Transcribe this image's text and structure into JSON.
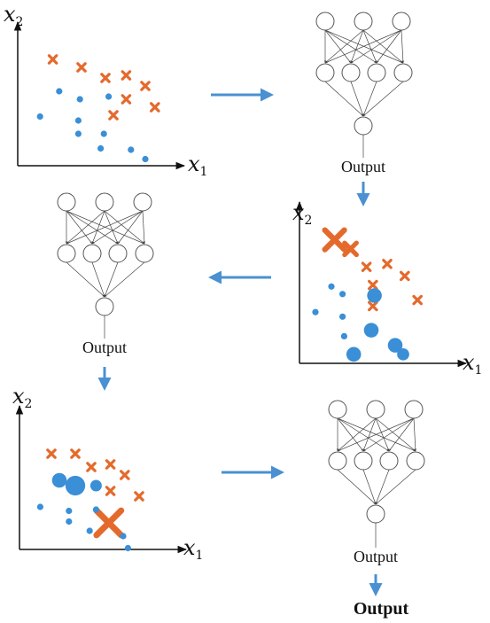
{
  "colors": {
    "orange": "#E46A2C",
    "blue": "#3A8FD6",
    "arrow": "#4A90D2",
    "node_stroke": "#555555",
    "edge": "#444444"
  },
  "axis": {
    "x_var": "x",
    "x_sub": "1",
    "y_var": "x",
    "y_sub": "2"
  },
  "network": {
    "output_label": "Output"
  },
  "final_output": "Output",
  "panels": [
    {
      "name": "scatter-initial",
      "points": [
        {
          "shape": "cross",
          "x": 0.22,
          "y": 0.8,
          "size": 1
        },
        {
          "shape": "cross",
          "x": 0.4,
          "y": 0.74,
          "size": 1
        },
        {
          "shape": "cross",
          "x": 0.55,
          "y": 0.66,
          "size": 1
        },
        {
          "shape": "cross",
          "x": 0.68,
          "y": 0.68,
          "size": 1
        },
        {
          "shape": "cross",
          "x": 0.8,
          "y": 0.6,
          "size": 1
        },
        {
          "shape": "cross",
          "x": 0.68,
          "y": 0.5,
          "size": 1
        },
        {
          "shape": "cross",
          "x": 0.86,
          "y": 0.44,
          "size": 1
        },
        {
          "shape": "cross",
          "x": 0.6,
          "y": 0.38,
          "size": 1
        },
        {
          "shape": "dot",
          "x": 0.26,
          "y": 0.56,
          "size": 1
        },
        {
          "shape": "dot",
          "x": 0.39,
          "y": 0.5,
          "size": 1
        },
        {
          "shape": "dot",
          "x": 0.57,
          "y": 0.52,
          "size": 1
        },
        {
          "shape": "dot",
          "x": 0.14,
          "y": 0.37,
          "size": 1
        },
        {
          "shape": "dot",
          "x": 0.38,
          "y": 0.34,
          "size": 1
        },
        {
          "shape": "dot",
          "x": 0.38,
          "y": 0.24,
          "size": 1
        },
        {
          "shape": "dot",
          "x": 0.54,
          "y": 0.24,
          "size": 1
        },
        {
          "shape": "dot",
          "x": 0.52,
          "y": 0.13,
          "size": 1
        },
        {
          "shape": "dot",
          "x": 0.71,
          "y": 0.12,
          "size": 1
        },
        {
          "shape": "dot",
          "x": 0.8,
          "y": 0.05,
          "size": 1
        }
      ]
    },
    {
      "name": "scatter-reweighted",
      "points": [
        {
          "shape": "cross",
          "x": 0.22,
          "y": 0.82,
          "size": 2.6
        },
        {
          "shape": "cross",
          "x": 0.32,
          "y": 0.76,
          "size": 1.6
        },
        {
          "shape": "cross",
          "x": 0.42,
          "y": 0.64,
          "size": 1
        },
        {
          "shape": "cross",
          "x": 0.55,
          "y": 0.66,
          "size": 1
        },
        {
          "shape": "cross",
          "x": 0.66,
          "y": 0.58,
          "size": 1
        },
        {
          "shape": "cross",
          "x": 0.46,
          "y": 0.52,
          "size": 1
        },
        {
          "shape": "cross",
          "x": 0.74,
          "y": 0.42,
          "size": 1
        },
        {
          "shape": "cross",
          "x": 0.46,
          "y": 0.38,
          "size": 1
        },
        {
          "shape": "dot",
          "x": 0.2,
          "y": 0.51,
          "size": 1
        },
        {
          "shape": "dot",
          "x": 0.27,
          "y": 0.46,
          "size": 1
        },
        {
          "shape": "dot",
          "x": 0.47,
          "y": 0.45,
          "size": 2.3
        },
        {
          "shape": "dot",
          "x": 0.1,
          "y": 0.34,
          "size": 1
        },
        {
          "shape": "dot",
          "x": 0.27,
          "y": 0.31,
          "size": 1
        },
        {
          "shape": "dot",
          "x": 0.45,
          "y": 0.22,
          "size": 2.3
        },
        {
          "shape": "dot",
          "x": 0.28,
          "y": 0.18,
          "size": 1
        },
        {
          "shape": "dot",
          "x": 0.6,
          "y": 0.12,
          "size": 2.3
        },
        {
          "shape": "dot",
          "x": 0.65,
          "y": 0.06,
          "size": 1.9
        },
        {
          "shape": "dot",
          "x": 0.34,
          "y": 0.06,
          "size": 2.3
        }
      ]
    },
    {
      "name": "scatter-final",
      "points": [
        {
          "shape": "cross",
          "x": 0.2,
          "y": 0.72,
          "size": 1
        },
        {
          "shape": "cross",
          "x": 0.35,
          "y": 0.72,
          "size": 1
        },
        {
          "shape": "cross",
          "x": 0.45,
          "y": 0.62,
          "size": 1
        },
        {
          "shape": "cross",
          "x": 0.57,
          "y": 0.64,
          "size": 1
        },
        {
          "shape": "cross",
          "x": 0.66,
          "y": 0.56,
          "size": 1
        },
        {
          "shape": "cross",
          "x": 0.57,
          "y": 0.44,
          "size": 1
        },
        {
          "shape": "cross",
          "x": 0.75,
          "y": 0.4,
          "size": 1
        },
        {
          "shape": "cross",
          "x": 0.56,
          "y": 0.2,
          "size": 3.3
        },
        {
          "shape": "dot",
          "x": 0.25,
          "y": 0.52,
          "size": 2.3
        },
        {
          "shape": "dot",
          "x": 0.35,
          "y": 0.48,
          "size": 3.1
        },
        {
          "shape": "dot",
          "x": 0.48,
          "y": 0.48,
          "size": 1.8
        },
        {
          "shape": "dot",
          "x": 0.13,
          "y": 0.32,
          "size": 1
        },
        {
          "shape": "dot",
          "x": 0.31,
          "y": 0.29,
          "size": 1
        },
        {
          "shape": "dot",
          "x": 0.31,
          "y": 0.21,
          "size": 1
        },
        {
          "shape": "dot",
          "x": 0.48,
          "y": 0.3,
          "size": 1
        },
        {
          "shape": "dot",
          "x": 0.44,
          "y": 0.14,
          "size": 1
        },
        {
          "shape": "dot",
          "x": 0.65,
          "y": 0.1,
          "size": 1
        },
        {
          "shape": "dot",
          "x": 0.68,
          "y": 0.01,
          "size": 1
        }
      ]
    }
  ]
}
